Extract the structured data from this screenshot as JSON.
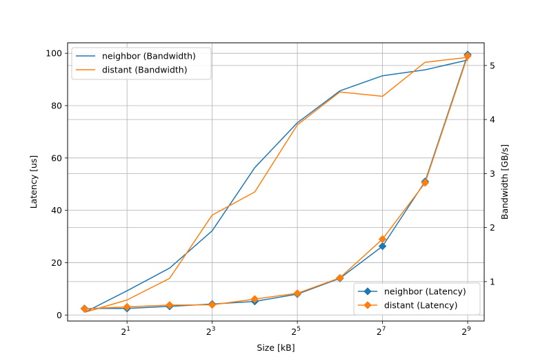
{
  "chart_data": {
    "type": "line",
    "xlabel": "Size [kB]",
    "ylabel_left": "Latency [us]",
    "ylabel_right": "Bandwidth [GB/s]",
    "x_scale": "log2",
    "x": [
      1,
      2,
      4,
      8,
      16,
      32,
      64,
      128,
      256,
      512
    ],
    "x_ticks": [
      {
        "value": 2,
        "base": "2",
        "exp": "1"
      },
      {
        "value": 8,
        "base": "2",
        "exp": "3"
      },
      {
        "value": 32,
        "base": "2",
        "exp": "5"
      },
      {
        "value": 128,
        "base": "2",
        "exp": "7"
      },
      {
        "value": 512,
        "base": "2",
        "exp": "9"
      }
    ],
    "xlim": [
      0.76,
      670
    ],
    "ylim_left": [
      -2.3,
      104
    ],
    "yticks_left": [
      "0",
      "20",
      "40",
      "60",
      "80",
      "100"
    ],
    "ylim_right": [
      0.27,
      5.42
    ],
    "yticks_right": [
      "1",
      "2",
      "3",
      "4",
      "5"
    ],
    "grid": true,
    "series": [
      {
        "name": "neighbor (Bandwidth)",
        "axis": "right",
        "color": "#1f77b4",
        "marker": "none",
        "values": [
          0.43,
          0.83,
          1.25,
          1.94,
          3.11,
          3.94,
          4.53,
          4.81,
          4.92,
          5.1
        ]
      },
      {
        "name": "distant (Bandwidth)",
        "axis": "right",
        "color": "#ff7f0e",
        "marker": "none",
        "values": [
          0.43,
          0.66,
          1.06,
          2.23,
          2.66,
          3.9,
          4.51,
          4.43,
          5.06,
          5.15
        ]
      },
      {
        "name": "neighbor (Latency)",
        "axis": "left",
        "color": "#1f77b4",
        "marker": "diamond",
        "values": [
          2.5,
          2.5,
          3.3,
          4.2,
          5.2,
          8.0,
          14.0,
          26.3,
          51.0,
          99.5
        ]
      },
      {
        "name": "distant (Latency)",
        "axis": "left",
        "color": "#ff7f0e",
        "marker": "diamond",
        "values": [
          2.4,
          3.1,
          3.8,
          3.9,
          6.1,
          8.3,
          14.2,
          29.0,
          50.5,
          99.0
        ]
      }
    ],
    "legends": [
      {
        "position": "top-left",
        "entries": [
          "neighbor (Bandwidth)",
          "distant (Bandwidth)"
        ]
      },
      {
        "position": "bottom-right",
        "entries": [
          "neighbor (Latency)",
          "distant (Latency)"
        ]
      }
    ]
  }
}
